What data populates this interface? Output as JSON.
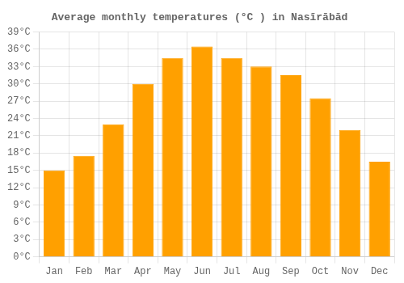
{
  "chart_data": {
    "type": "bar",
    "title": "Average monthly temperatures (°C ) in Nasīrābād",
    "categories": [
      "Jan",
      "Feb",
      "Mar",
      "Apr",
      "May",
      "Jun",
      "Jul",
      "Aug",
      "Sep",
      "Oct",
      "Nov",
      "Dec"
    ],
    "values": [
      15,
      17.5,
      23,
      30,
      34.5,
      36.5,
      34.5,
      33,
      31.5,
      27.5,
      22,
      16.5
    ],
    "color": "#FFA000",
    "ylim": [
      0,
      39
    ],
    "yticks": [
      {
        "value": 0,
        "label": "0°C"
      },
      {
        "value": 3,
        "label": "3°C"
      },
      {
        "value": 6,
        "label": "6°C"
      },
      {
        "value": 9,
        "label": "9°C"
      },
      {
        "value": 12,
        "label": "12°C"
      },
      {
        "value": 15,
        "label": "15°C"
      },
      {
        "value": 18,
        "label": "18°C"
      },
      {
        "value": 21,
        "label": "21°C"
      },
      {
        "value": 24,
        "label": "24°C"
      },
      {
        "value": 27,
        "label": "27°C"
      },
      {
        "value": 30,
        "label": "30°C"
      },
      {
        "value": 33,
        "label": "33°C"
      },
      {
        "value": 36,
        "label": "36°C"
      },
      {
        "value": 39,
        "label": "39°C"
      }
    ],
    "grid": true
  }
}
